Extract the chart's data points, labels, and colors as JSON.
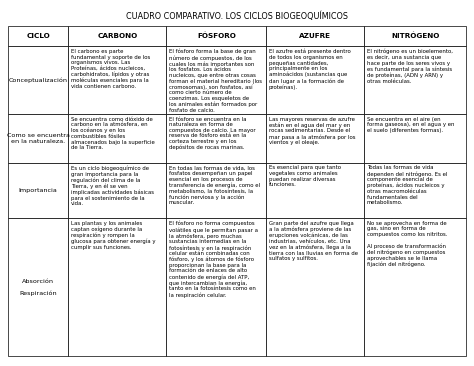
{
  "title": "CUADRO COMPARATIVO. LOS CICLOS BIOGEOQUÍMICOS",
  "col_headers": [
    "CICLO",
    "CARBONO",
    "FÓSFORO",
    "AZUFRE",
    "NITRÓGENO"
  ],
  "row_headers": [
    "Conceptualización",
    "Como se encuentra\nen la naturaleza.",
    "Importancia",
    "Absorción\n\nRespiración"
  ],
  "cells": [
    [
      "El carbono es parte\nfundamental y soporte de los\norganismos vivos. Las\nProteínas, ácidos nucleicos,\ncarbohidratos, lípidos y otras\nmoléculas esenciales para la\nvida contienen carbono.",
      "El fósforo forma la base de gran\nnúmero de compuestos, de los\ncuales los más importantes son\nlos fosfatos. Los ácidos\nnucleicos, que entre otras cosas\nforman el material hereditario (los\ncromosomas), son fosfatos, así\ncomo cierto número de\ncoenzimas. Los esqueletos de\nlos animales están formados por\nfosfato de calcio.",
      "El azufre está presente dentro\nde todos los organismos en\npequeñas cantidades,\nprincipalmente en los\naminoácidos (sustancias que\ndan lugar a la formación de\nproteínas).",
      "El nitrógeno es un bioelemento,\nes decir, una sustancia que\nhace parte de los seres vivos y\nes fundamental para la síntesis\nde proteínas, (ADN y ARN) y\notras moléculas."
    ],
    [
      "Se encuentra como dióxido de\ncarbono en la atmósfera, en\nlos océanos y en los\ncombustibles fósiles\nalmacenados bajo la superficie\nde la Tierra.",
      "El fósforo se encuentra en la\nnaturaleza en forma de\ncompuestos de calcio. La mayor\nreserva de fósforo está en la\ncorteza terrestre y en los\ndepósitos de rocas marinas.",
      "Las mayores reservas de azufre\nestán en el agua del mar y en\nrocas sedimentarias. Desde el\nmar pasa a la atmósfera por los\nvientos y el oleaje.",
      "Se encuentra en el aire (en\nforma gaseosa), en el agua y en\nel suelo (diferentes formas)."
    ],
    [
      "Es un ciclo biogeoquímico de\ngran importancia para la\nregulación del clima de la\nTierra, y en él se ven\nimplicadas actividades básicas\npara el sostenimiento de la\nvida.",
      "En todas las formas de vida, los\nfosfatos desempeñan un papel\nesencial en los procesos de\ntransferencia de energía, como el\nmetabolismo, la fotosíntesis, la\nfunción nerviosa y la acción\nmuscular.",
      "Es esencial para que tanto\nvegetales como animales\npuedan realizar diversas\nfunciones.",
      "Todas las formas de vida\ndependen del nitrógeno. Es el\ncomponente esencial de\nproteínas, ácidos nucleicos y\notras macromoléculas\nfundamentales del\nmetabolismo."
    ],
    [
      "Las plantas y los animales\ncaptan oxígeno durante la\nrespiración y rompen la\nglucosa para obtener energía y\ncumplir sus funciones.",
      "El fósforo no forma compuestos\nvolátiles que le permitan pasar a\nla atmósfera, pero muchas\nsustancias intermedias en la\nfotosíntesis y en la respiración\ncelular están combinadas con\nfósforo, y los átomos de fósforo\nproporcionan la base para la\nformación de enlaces de alto\ncontenido de energía del ATP,\nque intercambian la energía,\ntanto en la fotosíntesis como en\nla respiración celular.",
      "Gran parte del azufre que llega\na la atmósfera proviene de las\nerupciones volcánicas, de las\nindustrias, vehículos, etc. Una\nvez en la atmósfera, llega a la\ntierra con las lluvias en forma de\nsulfatos y sulfitos.",
      "No se aprovecha en forma de\ngas, sino en forma de\ncompuestos como los nitritos.\n\nAl proceso de transformación\ndel nitrógeno en compuestos\naprovechables se le llama\nfijación del nitrógeno."
    ]
  ],
  "title_fontsize": 5.8,
  "header_fontsize": 5.2,
  "cell_fontsize": 3.85,
  "row_header_fontsize": 4.6,
  "border_color": "#000000",
  "cell_text_color": "#000000"
}
